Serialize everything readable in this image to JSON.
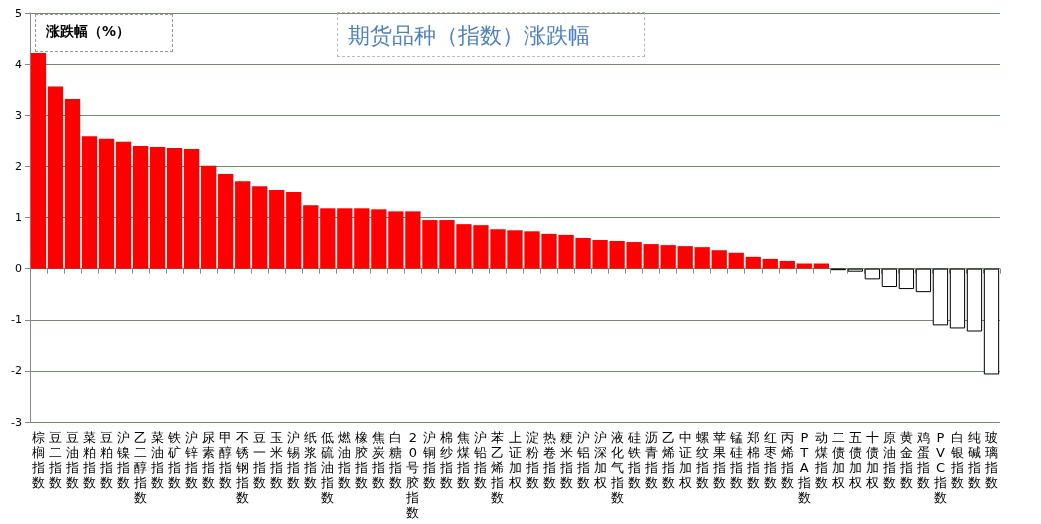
{
  "chart_data": {
    "type": "bar",
    "title": "期货品种（指数）涨跌幅",
    "ylabel": "涨跌幅（%）",
    "categories": [
      "棕榈指数",
      "豆二指数",
      "豆油指数",
      "菜粕指数",
      "豆粕指数",
      "沪镍指数",
      "乙二醇指数",
      "菜油指数",
      "铁矿指数",
      "沪锌指数",
      "尿素指数",
      "甲醇指数",
      "不锈钢指数",
      "豆一指数",
      "玉米指数",
      "沪锡指数",
      "纸浆指数",
      "低硫油指数",
      "燃油指数",
      "橡胶指数",
      "焦炭指数",
      "白糖指数",
      "20号胶指数",
      "沪铜指数",
      "棉纱指数",
      "焦煤指数",
      "沪铅指数",
      "苯乙烯指数",
      "上证加权",
      "淀粉指数",
      "热卷指数",
      "粳米指数",
      "沪铝指数",
      "沪深加权",
      "液化气指数",
      "硅铁指数",
      "沥青指数",
      "乙烯指数",
      "中证加权",
      "螺纹指数",
      "苹果指数",
      "锰硅指数",
      "郑棉指数",
      "红枣指数",
      "丙烯指数",
      "PTA指数",
      "动煤指数",
      "二债加权",
      "五债加权",
      "十债加权",
      "原油指数",
      "黄金指数",
      "鸡蛋指数",
      "PVC指数",
      "白银指数",
      "纯碱指数",
      "玻璃指数"
    ],
    "values": [
      4.22,
      3.56,
      3.32,
      2.59,
      2.54,
      2.48,
      2.4,
      2.38,
      2.36,
      2.34,
      2.01,
      1.85,
      1.71,
      1.61,
      1.54,
      1.5,
      1.24,
      1.18,
      1.18,
      1.18,
      1.16,
      1.12,
      1.12,
      0.95,
      0.95,
      0.87,
      0.85,
      0.77,
      0.75,
      0.73,
      0.68,
      0.66,
      0.6,
      0.56,
      0.54,
      0.52,
      0.48,
      0.46,
      0.44,
      0.42,
      0.36,
      0.31,
      0.23,
      0.19,
      0.15,
      0.1,
      0.1,
      -0.03,
      -0.06,
      -0.21,
      -0.36,
      -0.4,
      -0.46,
      -1.11,
      -1.17,
      -1.23,
      -2.07
    ],
    "colors": [
      "#ff0000",
      "#ff0000",
      "#ff0000",
      "#ff0000",
      "#ff0000",
      "#ff0000",
      "#ff0000",
      "#ff0000",
      "#ff0000",
      "#ff0000",
      "#ff0000",
      "#ff0000",
      "#ff0000",
      "#ff0000",
      "#ff0000",
      "#ff0000",
      "#ff0000",
      "#ff0000",
      "#ff0000",
      "#ff0000",
      "#ff0000",
      "#ff0000",
      "#ff0000",
      "#ff0000",
      "#ff0000",
      "#ff0000",
      "#ff0000",
      "#ff0000",
      "#ff0000",
      "#ff0000",
      "#ff0000",
      "#ff0000",
      "#ff0000",
      "#ff0000",
      "#ff0000",
      "#ff0000",
      "#ff0000",
      "#ff0000",
      "#ff0000",
      "#ff0000",
      "#ff0000",
      "#ff0000",
      "#ff0000",
      "#ff0000",
      "#ff0000",
      "#ff0000",
      "#ff0000",
      "#ffffff",
      "#ffffff",
      "#ffffff",
      "#ffffff",
      "#ffffff",
      "#ffffff",
      "#ffffff",
      "#ffffff",
      "#ffffff",
      "#ffffff"
    ],
    "ylim": [
      -3,
      5
    ],
    "yticks": [
      -3,
      -2,
      -1,
      0,
      1,
      2,
      3,
      4,
      5
    ],
    "grid": "y"
  }
}
